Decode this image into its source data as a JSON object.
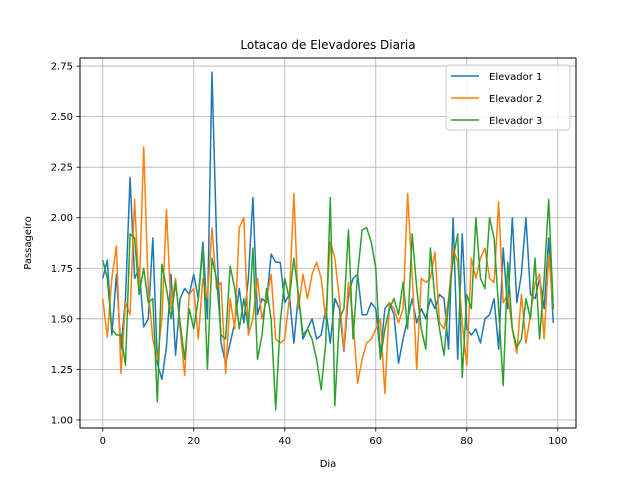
{
  "chart_data": {
    "type": "line",
    "title": "Lotacao de Elevadores Diaria",
    "xlabel": "Dia",
    "ylabel": "Passageiro",
    "xlim": [
      -5,
      104
    ],
    "ylim": [
      0.96,
      2.79
    ],
    "xticks": [
      0,
      20,
      40,
      60,
      80,
      100
    ],
    "yticks": [
      1.0,
      1.25,
      1.5,
      1.75,
      2.0,
      2.25,
      2.5,
      2.75
    ],
    "ytick_labels": [
      "1.00",
      "1.25",
      "1.50",
      "1.75",
      "2.00",
      "2.25",
      "2.50",
      "2.75"
    ],
    "grid": true,
    "legend_position": "top-right",
    "series": [
      {
        "name": "Elevador 1",
        "color": "#1f77b4",
        "values": [
          1.7,
          1.79,
          1.42,
          1.72,
          1.35,
          1.6,
          2.2,
          1.7,
          1.75,
          1.46,
          1.5,
          1.9,
          1.28,
          1.2,
          1.36,
          1.72,
          1.32,
          1.6,
          1.65,
          1.62,
          1.72,
          1.6,
          1.88,
          1.5,
          2.72,
          1.9,
          1.38,
          1.28,
          1.38,
          1.48,
          1.65,
          1.48,
          1.7,
          2.1,
          1.52,
          1.6,
          1.58,
          1.82,
          1.78,
          1.78,
          1.58,
          1.62,
          1.38,
          1.62,
          1.4,
          1.45,
          1.5,
          1.4,
          1.42,
          1.55,
          1.38,
          1.6,
          1.55,
          1.34,
          1.62,
          1.7,
          1.72,
          1.52,
          1.52,
          1.58,
          1.55,
          1.32,
          1.55,
          1.58,
          1.52,
          1.28,
          1.4,
          1.5,
          1.6,
          1.48,
          1.55,
          1.5,
          1.6,
          1.55,
          1.62,
          1.6,
          1.35,
          2.0,
          1.3,
          1.92,
          1.45,
          1.42,
          1.45,
          1.38,
          1.5,
          1.52,
          1.6,
          1.35,
          1.85,
          1.55,
          2.0,
          1.58,
          1.72,
          2.0,
          1.62,
          1.6,
          1.7,
          1.55,
          1.9,
          1.48
        ]
      },
      {
        "name": "Elevador 2",
        "color": "#ff7f0e",
        "values": [
          1.6,
          1.41,
          1.7,
          1.86,
          1.23,
          1.58,
          1.52,
          2.09,
          1.62,
          2.35,
          1.65,
          1.4,
          1.3,
          1.5,
          2.04,
          1.55,
          1.7,
          1.45,
          1.22,
          1.62,
          1.65,
          1.4,
          1.7,
          1.6,
          1.95,
          1.65,
          1.68,
          1.23,
          1.6,
          1.45,
          1.95,
          2.0,
          1.42,
          1.5,
          1.7,
          1.5,
          1.6,
          1.72,
          1.4,
          1.38,
          1.4,
          1.6,
          2.12,
          1.55,
          1.72,
          1.6,
          1.72,
          1.78,
          1.7,
          1.5,
          1.88,
          1.8,
          1.6,
          1.35,
          1.68,
          1.5,
          1.18,
          1.3,
          1.38,
          1.4,
          1.45,
          1.5,
          1.13,
          1.58,
          1.55,
          1.48,
          1.55,
          2.12,
          1.72,
          1.25,
          1.7,
          1.68,
          1.7,
          1.83,
          1.48,
          1.45,
          1.6,
          1.85,
          1.78,
          1.48,
          1.27,
          1.8,
          1.7,
          1.8,
          1.85,
          1.7,
          1.68,
          2.08,
          1.58,
          1.62,
          1.45,
          1.33,
          1.62,
          1.38,
          1.52,
          1.68,
          1.72,
          1.4,
          1.82,
          1.55
        ]
      },
      {
        "name": "Elevador 3",
        "color": "#2ca02c",
        "values": [
          1.79,
          1.7,
          1.45,
          1.42,
          1.42,
          1.27,
          1.92,
          1.9,
          1.62,
          1.75,
          1.58,
          1.6,
          1.09,
          1.77,
          1.65,
          1.5,
          1.68,
          1.48,
          1.3,
          1.55,
          1.45,
          1.6,
          1.85,
          1.25,
          1.8,
          1.7,
          1.42,
          1.4,
          1.76,
          1.65,
          1.45,
          1.6,
          1.45,
          1.85,
          1.3,
          1.42,
          1.65,
          1.5,
          1.05,
          1.48,
          1.7,
          1.6,
          1.8,
          1.62,
          1.42,
          1.45,
          1.4,
          1.3,
          1.15,
          1.38,
          2.1,
          1.07,
          1.5,
          1.55,
          1.94,
          1.4,
          1.72,
          1.94,
          1.95,
          1.88,
          1.75,
          1.3,
          1.45,
          1.55,
          1.6,
          1.52,
          1.68,
          1.45,
          1.92,
          1.65,
          1.45,
          1.35,
          1.85,
          1.6,
          1.45,
          1.32,
          1.58,
          1.8,
          1.92,
          1.21,
          1.62,
          1.55,
          2.0,
          1.7,
          1.65,
          2.0,
          1.9,
          1.55,
          1.17,
          1.78,
          1.45,
          1.36,
          1.4,
          1.6,
          1.5,
          1.8,
          1.4,
          1.7,
          2.09,
          1.55
        ]
      }
    ]
  }
}
